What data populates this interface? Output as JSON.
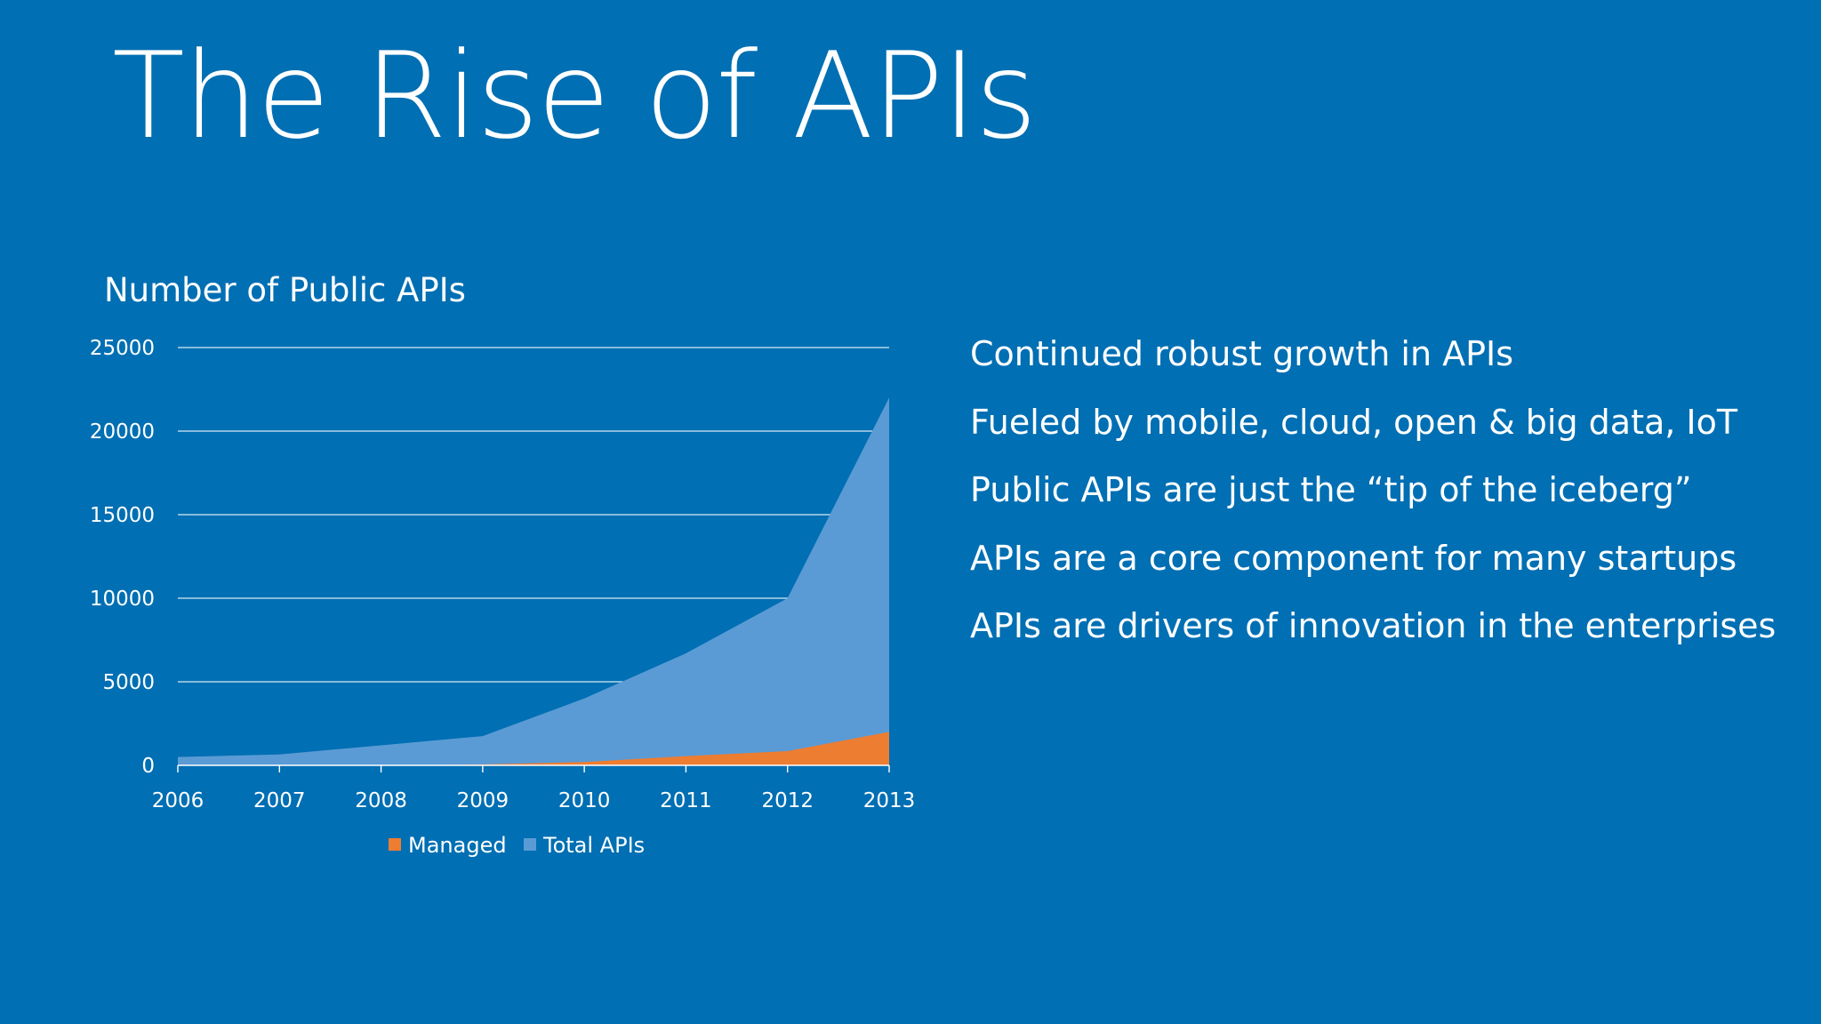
{
  "slide": {
    "title": "The Rise of APIs",
    "bullets": [
      "Continued robust growth in APIs",
      "Fueled by mobile, cloud, open & big data, IoT",
      "Public APIs are just the “tip of the iceberg”",
      "APIs are a core component for many startups",
      "APIs are drivers of innovation in the enterprises"
    ]
  },
  "chart_data": {
    "type": "area",
    "title": "Number of Public APIs",
    "xlabel": "",
    "ylabel": "",
    "categories": [
      "2006",
      "2007",
      "2008",
      "2009",
      "2010",
      "2011",
      "2012",
      "2013"
    ],
    "ylim": [
      0,
      25000
    ],
    "yticks": [
      "0",
      "5000",
      "10000",
      "15000",
      "20000",
      "25000"
    ],
    "grid": true,
    "legend_position": "bottom",
    "series": [
      {
        "name": "Total APIs",
        "values": [
          500,
          650,
          1200,
          1750,
          4000,
          6700,
          10000,
          22000
        ],
        "color": "#5b9bd5"
      },
      {
        "name": "Managed",
        "values": [
          0,
          0,
          0,
          50,
          200,
          550,
          850,
          2000
        ],
        "color": "#ed7d31"
      }
    ],
    "colors": {
      "background": "#006fb3",
      "text": "#ffffff",
      "grid": "#ffffff"
    }
  }
}
